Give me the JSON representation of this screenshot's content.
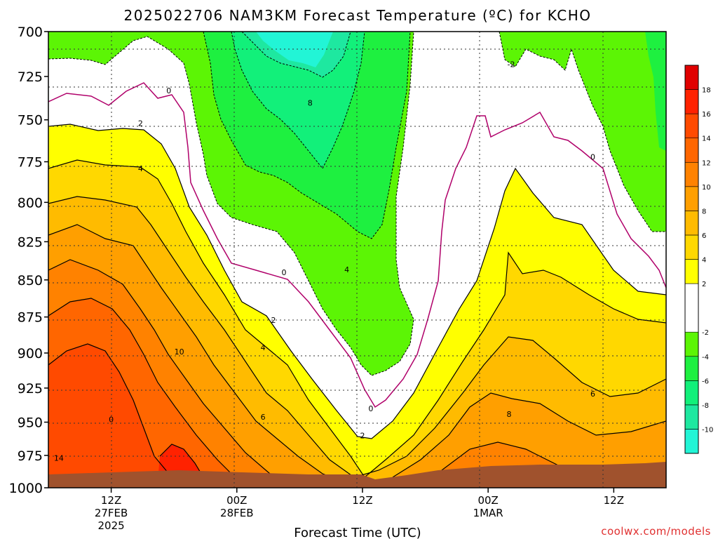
{
  "chart_data": {
    "type": "heatmap",
    "title": "2025022706 NAM3KM Forecast Temperature (ºC) for KCHO",
    "xlabel": "Forecast Time (UTC)",
    "ylabel": "",
    "x_ticks": [
      {
        "hour": 6,
        "l1": "12Z",
        "l2": "27FEB",
        "l3": "2025"
      },
      {
        "hour": 18,
        "l1": "00Z",
        "l2": "28FEB",
        "l3": ""
      },
      {
        "hour": 30,
        "l1": "12Z",
        "l2": "",
        "l3": ""
      },
      {
        "hour": 42,
        "l1": "00Z",
        "l2": "1MAR",
        "l3": ""
      },
      {
        "hour": 54,
        "l1": "12Z",
        "l2": "",
        "l3": ""
      }
    ],
    "xlim_hours": [
      0,
      59
    ],
    "ylim_hpa": [
      700,
      1000
    ],
    "y_ticks": [
      700,
      725,
      750,
      775,
      800,
      825,
      850,
      875,
      900,
      925,
      950,
      975,
      1000
    ],
    "grid": true,
    "colorbar": {
      "labels": [
        18,
        16,
        14,
        12,
        10,
        8,
        6,
        4,
        2,
        -2,
        -4,
        -6,
        -8,
        -10
      ],
      "levels": [
        {
          "lo": -12,
          "hi": -10,
          "color": "#22f5d6"
        },
        {
          "lo": -10,
          "hi": -8,
          "color": "#1ee8a0"
        },
        {
          "lo": -8,
          "hi": -6,
          "color": "#12f07a"
        },
        {
          "lo": -6,
          "hi": -4,
          "color": "#1ef040"
        },
        {
          "lo": -4,
          "hi": -2,
          "color": "#5cf505"
        },
        {
          "lo": -2,
          "hi": 2,
          "color": "#ffffff"
        },
        {
          "lo": 2,
          "hi": 4,
          "color": "#ffff00"
        },
        {
          "lo": 4,
          "hi": 6,
          "color": "#ffd800"
        },
        {
          "lo": 6,
          "hi": 8,
          "color": "#ffbb00"
        },
        {
          "lo": 8,
          "hi": 10,
          "color": "#ff9f00"
        },
        {
          "lo": 10,
          "hi": 12,
          "color": "#ff8200"
        },
        {
          "lo": 12,
          "hi": 14,
          "color": "#ff6600"
        },
        {
          "lo": 14,
          "hi": 16,
          "color": "#ff4a00"
        },
        {
          "lo": 16,
          "hi": 18,
          "color": "#ff2200"
        },
        {
          "lo": 18,
          "hi": 20,
          "color": "#e00000"
        }
      ]
    },
    "contour_labels": [
      {
        "text": "0",
        "hour": 11.5,
        "p": 733
      },
      {
        "text": "2",
        "hour": 8.8,
        "p": 752
      },
      {
        "text": "4",
        "hour": 8.8,
        "p": 779
      },
      {
        "text": "-2",
        "hour": 44.2,
        "p": 718
      },
      {
        "text": "8",
        "hour": 25.0,
        "p": 740
      },
      {
        "text": "0",
        "hour": 52.0,
        "p": 772
      },
      {
        "text": "0",
        "hour": 22.5,
        "p": 845
      },
      {
        "text": "4",
        "hour": 28.5,
        "p": 843
      },
      {
        "text": "2",
        "hour": 21.5,
        "p": 877
      },
      {
        "text": "4",
        "hour": 20.5,
        "p": 896
      },
      {
        "text": "10",
        "hour": 12.5,
        "p": 899
      },
      {
        "text": "6",
        "hour": 20.5,
        "p": 946
      },
      {
        "text": "8",
        "hour": 44.0,
        "p": 944
      },
      {
        "text": "6",
        "hour": 52.0,
        "p": 929
      },
      {
        "text": "0",
        "hour": 30.8,
        "p": 940
      },
      {
        "text": "2",
        "hour": 30.0,
        "p": 960
      },
      {
        "text": "0",
        "hour": 6.0,
        "p": 948
      },
      {
        "text": "14",
        "hour": 1.0,
        "p": 977
      }
    ],
    "surface_pressure_hpa": [
      [
        0,
        990
      ],
      [
        5,
        989
      ],
      [
        10,
        988
      ],
      [
        15,
        990
      ],
      [
        20,
        990
      ],
      [
        25,
        991
      ],
      [
        29,
        991
      ],
      [
        31,
        994
      ],
      [
        35,
        991
      ],
      [
        40,
        988
      ],
      [
        45,
        986
      ],
      [
        50,
        985
      ],
      [
        55,
        985
      ],
      [
        59,
        983
      ]
    ]
  },
  "footer": {
    "credit": "coolwx.com/models"
  }
}
